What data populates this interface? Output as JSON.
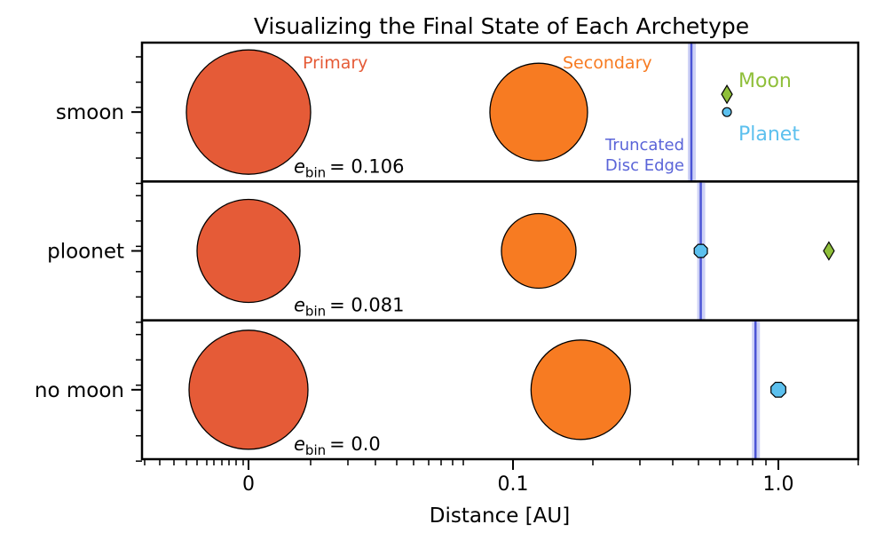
{
  "chart_data": {
    "type": "scatter",
    "title": "Visualizing the Final State of Each Archetype",
    "xlabel": "Distance [AU]",
    "x_scale": "symlog",
    "xlim": [
      -0.04,
      2.0
    ],
    "x_ticks": [
      {
        "value": 0,
        "label": "0"
      },
      {
        "value": 0.1,
        "label": "0.1"
      },
      {
        "value": 1.0,
        "label": "1.0"
      }
    ],
    "rows": [
      {
        "label": "smoon",
        "ebin_prefix": "e",
        "ebin_sub": "bin",
        "ebin_value": "= 0.106",
        "primary_x": 0.0,
        "secondary_x": 0.125,
        "disc_edge_x": 0.47,
        "planet_x": 0.64,
        "moon_x": 0.64,
        "body_labels": {
          "primary": "Primary",
          "secondary": "Secondary",
          "moon": "Moon",
          "planet": "Planet",
          "disc_line1": "Truncated",
          "disc_line2": "Disc Edge"
        }
      },
      {
        "label": "ploonet",
        "ebin_prefix": "e",
        "ebin_sub": "bin",
        "ebin_value": "= 0.081",
        "primary_x": 0.0,
        "secondary_x": 0.125,
        "disc_edge_x": 0.51,
        "planet_x": 0.51,
        "moon_x": 1.55
      },
      {
        "label": "no moon",
        "ebin_prefix": "e",
        "ebin_sub": "bin",
        "ebin_value": "= 0.0",
        "primary_x": 0.0,
        "secondary_x": 0.18,
        "disc_edge_x": 0.82,
        "planet_x": 1.0
      }
    ],
    "colors": {
      "primary": "#e55b37",
      "secondary": "#f77b22",
      "planet": "#5cc0ee",
      "moon": "#8fbf3a",
      "disc_edge": "#4b55d6",
      "disc_band": "#c9cdf5"
    }
  }
}
